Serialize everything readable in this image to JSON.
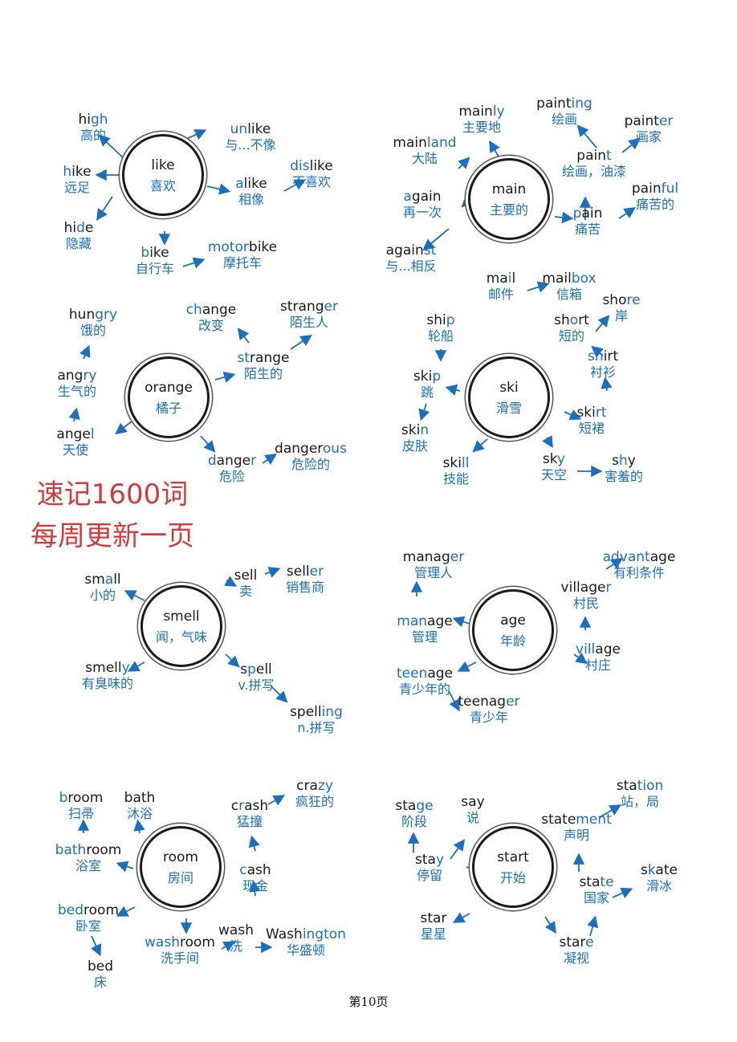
{
  "clusters": [
    {
      "id": "like",
      "center": {
        "en": "like",
        "zh": "喜欢"
      },
      "words": [
        {
          "id": "high",
          "parts": [
            [
              "hi",
              0
            ],
            [
              "gh",
              1
            ]
          ],
          "zh": "高的"
        },
        {
          "id": "hike",
          "parts": [
            [
              "h",
              1
            ],
            [
              "ike",
              0
            ]
          ],
          "zh": "远足"
        },
        {
          "id": "hide",
          "parts": [
            [
              "hi",
              0
            ],
            [
              "d",
              1
            ],
            [
              "e",
              0
            ]
          ],
          "zh": "隐藏"
        },
        {
          "id": "unlike",
          "parts": [
            [
              "un",
              1
            ],
            [
              "like",
              0
            ]
          ],
          "zh": "与...不像"
        },
        {
          "id": "alike",
          "parts": [
            [
              "a",
              1
            ],
            [
              "like",
              0
            ]
          ],
          "zh": "相像"
        },
        {
          "id": "dislike",
          "parts": [
            [
              "dis",
              1
            ],
            [
              "like",
              0
            ]
          ],
          "zh": "不喜欢"
        },
        {
          "id": "bike",
          "parts": [
            [
              "b",
              1
            ],
            [
              "ike",
              0
            ]
          ],
          "zh": "自行车"
        },
        {
          "id": "motorbike",
          "parts": [
            [
              "motor",
              1
            ],
            [
              "bike",
              0
            ]
          ],
          "zh": "摩托车"
        }
      ]
    },
    {
      "id": "main",
      "center": {
        "en": "main",
        "zh": "主要的"
      },
      "words": [
        {
          "id": "mainly",
          "parts": [
            [
              "main",
              0
            ],
            [
              "ly",
              1
            ]
          ],
          "zh": "主要地"
        },
        {
          "id": "mainland",
          "parts": [
            [
              "main",
              0
            ],
            [
              "land",
              1
            ]
          ],
          "zh": "大陆"
        },
        {
          "id": "painting",
          "parts": [
            [
              "paint",
              0
            ],
            [
              "ing",
              1
            ]
          ],
          "zh": "绘画"
        },
        {
          "id": "painter",
          "parts": [
            [
              "paint",
              0
            ],
            [
              "er",
              1
            ]
          ],
          "zh": "画家"
        },
        {
          "id": "paint",
          "parts": [
            [
              "pain",
              0
            ],
            [
              "t",
              1
            ]
          ],
          "zh": "绘画，油漆"
        },
        {
          "id": "again",
          "parts": [
            [
              "a",
              1
            ],
            [
              "gain",
              0
            ]
          ],
          "zh": "再一次"
        },
        {
          "id": "painful",
          "parts": [
            [
              "pain",
              0
            ],
            [
              "ful",
              1
            ]
          ],
          "zh": "痛苦的"
        },
        {
          "id": "pain",
          "parts": [
            [
              "p",
              1
            ],
            [
              "ain",
              0
            ]
          ],
          "zh": "痛苦"
        },
        {
          "id": "against",
          "parts": [
            [
              "again",
              0
            ],
            [
              "st",
              1
            ]
          ],
          "zh": "与...相反"
        },
        {
          "id": "mail",
          "parts": [
            [
              "ma",
              0
            ],
            [
              "i",
              1
            ],
            [
              "l",
              0
            ]
          ],
          "zh": "邮件"
        },
        {
          "id": "mailbox",
          "parts": [
            [
              "mail",
              0
            ],
            [
              "box",
              1
            ]
          ],
          "zh": "信箱"
        }
      ]
    },
    {
      "id": "orange",
      "center": {
        "en": "orange",
        "zh": "橘子"
      },
      "words": [
        {
          "id": "hungry",
          "parts": [
            [
              "hun",
              0
            ],
            [
              "gry",
              1
            ]
          ],
          "zh": "饿的"
        },
        {
          "id": "change",
          "parts": [
            [
              "ch",
              1
            ],
            [
              "ange",
              0
            ]
          ],
          "zh": "改变"
        },
        {
          "id": "stranger",
          "parts": [
            [
              "strang",
              0
            ],
            [
              "er",
              1
            ]
          ],
          "zh": "陌生人"
        },
        {
          "id": "strange",
          "parts": [
            [
              "st",
              1
            ],
            [
              "range",
              0
            ]
          ],
          "zh": "陌生的"
        },
        {
          "id": "angry",
          "parts": [
            [
              "ang",
              0
            ],
            [
              "ry",
              1
            ]
          ],
          "zh": "生气的"
        },
        {
          "id": "angel",
          "parts": [
            [
              "ange",
              0
            ],
            [
              "l",
              1
            ]
          ],
          "zh": "天使"
        },
        {
          "id": "danger",
          "parts": [
            [
              "d",
              1
            ],
            [
              "ange",
              0
            ],
            [
              "r",
              1
            ]
          ],
          "zh": "危险"
        },
        {
          "id": "dangerous",
          "parts": [
            [
              "danger",
              0
            ],
            [
              "ous",
              1
            ]
          ],
          "zh": "危险的"
        }
      ]
    },
    {
      "id": "ski",
      "center": {
        "en": "ski",
        "zh": "滑雪"
      },
      "words": [
        {
          "id": "ship",
          "parts": [
            [
              "sh",
              0
            ],
            [
              "i",
              0
            ],
            [
              "p",
              1
            ]
          ],
          "zh": "轮船"
        },
        {
          "id": "shore",
          "parts": [
            [
              "sho",
              0
            ],
            [
              "re",
              1
            ]
          ],
          "zh": "岸"
        },
        {
          "id": "short",
          "parts": [
            [
              "sh",
              0
            ],
            [
              "o",
              1
            ],
            [
              "rt",
              0
            ]
          ],
          "zh": "短的"
        },
        {
          "id": "shirt",
          "parts": [
            [
              "sh",
              1
            ],
            [
              "irt",
              0
            ]
          ],
          "zh": "衬衫"
        },
        {
          "id": "skip",
          "parts": [
            [
              "ski",
              0
            ],
            [
              "p",
              1
            ]
          ],
          "zh": "跳"
        },
        {
          "id": "skirt",
          "parts": [
            [
              "ski",
              0
            ],
            [
              "rt",
              1
            ]
          ],
          "zh": "短裙"
        },
        {
          "id": "skin",
          "parts": [
            [
              "ski",
              0
            ],
            [
              "n",
              1
            ]
          ],
          "zh": "皮肤"
        },
        {
          "id": "skill",
          "parts": [
            [
              "ski",
              0
            ],
            [
              "ll",
              1
            ]
          ],
          "zh": "技能"
        },
        {
          "id": "sky",
          "parts": [
            [
              "sk",
              0
            ],
            [
              "y",
              1
            ]
          ],
          "zh": "天空"
        },
        {
          "id": "shy",
          "parts": [
            [
              "s",
              0
            ],
            [
              "h",
              1
            ],
            [
              "y",
              0
            ]
          ],
          "zh": "害羞的"
        }
      ]
    },
    {
      "id": "smell",
      "center": {
        "en": "smell",
        "zh": "闻，气味"
      },
      "words": [
        {
          "id": "small",
          "parts": [
            [
              "sm",
              0
            ],
            [
              "a",
              1
            ],
            [
              "ll",
              0
            ]
          ],
          "zh": "小的"
        },
        {
          "id": "sell",
          "parts": [
            [
              "s",
              0
            ],
            [
              "ell",
              0
            ]
          ],
          "zh": "卖"
        },
        {
          "id": "seller",
          "parts": [
            [
              "sell",
              0
            ],
            [
              "er",
              1
            ]
          ],
          "zh": "销售商"
        },
        {
          "id": "smelly",
          "parts": [
            [
              "smell",
              0
            ],
            [
              "y",
              1
            ]
          ],
          "zh": "有臭味的"
        },
        {
          "id": "spell",
          "parts": [
            [
              "s",
              0
            ],
            [
              "p",
              1
            ],
            [
              "ell",
              0
            ]
          ],
          "zh": "v.拼写"
        },
        {
          "id": "spelling",
          "parts": [
            [
              "spell",
              0
            ],
            [
              "ing",
              1
            ]
          ],
          "zh": "n.拼写"
        }
      ]
    },
    {
      "id": "age",
      "center": {
        "en": "age",
        "zh": "年龄"
      },
      "words": [
        {
          "id": "manager",
          "parts": [
            [
              "manag",
              0
            ],
            [
              "er",
              1
            ]
          ],
          "zh": "管理人"
        },
        {
          "id": "advantage",
          "parts": [
            [
              "advant",
              1
            ],
            [
              "age",
              0
            ]
          ],
          "zh": "有利条件"
        },
        {
          "id": "villager",
          "parts": [
            [
              "village",
              0
            ],
            [
              "r",
              1
            ]
          ],
          "zh": "村民"
        },
        {
          "id": "manage",
          "parts": [
            [
              "man",
              1
            ],
            [
              "age",
              0
            ]
          ],
          "zh": "管理"
        },
        {
          "id": "village",
          "parts": [
            [
              "vill",
              1
            ],
            [
              "age",
              0
            ]
          ],
          "zh": "村庄"
        },
        {
          "id": "teenage",
          "parts": [
            [
              "teen",
              1
            ],
            [
              "age",
              0
            ]
          ],
          "zh": "青少年的"
        },
        {
          "id": "teenager",
          "parts": [
            [
              "teenag",
              0
            ],
            [
              "er",
              1
            ]
          ],
          "zh": "青少年"
        }
      ]
    },
    {
      "id": "room",
      "center": {
        "en": "room",
        "zh": "房间"
      },
      "words": [
        {
          "id": "broom",
          "parts": [
            [
              "b",
              1
            ],
            [
              "room",
              0
            ]
          ],
          "zh": "扫帚"
        },
        {
          "id": "bath",
          "parts": [
            [
              "bath",
              0
            ]
          ],
          "zh": "沐浴"
        },
        {
          "id": "crazy",
          "parts": [
            [
              "cra",
              0
            ],
            [
              "zy",
              1
            ]
          ],
          "zh": "疯狂的"
        },
        {
          "id": "crash",
          "parts": [
            [
              "c",
              0
            ],
            [
              "r",
              1
            ],
            [
              "ash",
              0
            ]
          ],
          "zh": "猛撞"
        },
        {
          "id": "bathroom",
          "parts": [
            [
              "bath",
              1
            ],
            [
              "room",
              0
            ]
          ],
          "zh": "浴室"
        },
        {
          "id": "cash",
          "parts": [
            [
              "c",
              1
            ],
            [
              "ash",
              0
            ]
          ],
          "zh": "现金"
        },
        {
          "id": "bedroom",
          "parts": [
            [
              "bed",
              1
            ],
            [
              "room",
              0
            ]
          ],
          "zh": "卧室"
        },
        {
          "id": "wash",
          "parts": [
            [
              "wash",
              0
            ]
          ],
          "zh": "洗"
        },
        {
          "id": "washroom",
          "parts": [
            [
              "wash",
              1
            ],
            [
              "room",
              0
            ]
          ],
          "zh": "洗手间"
        },
        {
          "id": "washington",
          "parts": [
            [
              "Wash",
              0
            ],
            [
              "ington",
              1
            ]
          ],
          "zh": "华盛顿"
        },
        {
          "id": "bed",
          "parts": [
            [
              "bed",
              0
            ]
          ],
          "zh": "床"
        }
      ]
    },
    {
      "id": "start",
      "center": {
        "en": "start",
        "zh": "开始"
      },
      "words": [
        {
          "id": "stage",
          "parts": [
            [
              "sta",
              0
            ],
            [
              "ge",
              1
            ]
          ],
          "zh": "阶段"
        },
        {
          "id": "say",
          "parts": [
            [
              "s",
              0
            ],
            [
              "ay",
              0
            ]
          ],
          "zh": "说"
        },
        {
          "id": "station",
          "parts": [
            [
              "sta",
              0
            ],
            [
              "tion",
              1
            ]
          ],
          "zh": "站，局"
        },
        {
          "id": "statement",
          "parts": [
            [
              "state",
              0
            ],
            [
              "ment",
              1
            ]
          ],
          "zh": "声明"
        },
        {
          "id": "stay",
          "parts": [
            [
              "sta",
              0
            ],
            [
              "y",
              1
            ]
          ],
          "zh": "停留"
        },
        {
          "id": "state",
          "parts": [
            [
              "sta",
              0
            ],
            [
              "te",
              1
            ]
          ],
          "zh": "国家"
        },
        {
          "id": "skate",
          "parts": [
            [
              "s",
              0
            ],
            [
              "k",
              1
            ],
            [
              "ate",
              0
            ]
          ],
          "zh": "滑冰"
        },
        {
          "id": "star",
          "parts": [
            [
              "sta",
              0
            ],
            [
              "r",
              0
            ]
          ],
          "zh": "星星"
        },
        {
          "id": "stare",
          "parts": [
            [
              "star",
              0
            ],
            [
              "e",
              1
            ]
          ],
          "zh": "凝视"
        }
      ]
    }
  ],
  "note": {
    "line1": "速记1600词",
    "line2": "每周更新一页"
  },
  "footer": "第10页",
  "colors": {
    "accent": "#1a6fbf",
    "text": "#1a1a1a",
    "note": "#d23b3b"
  }
}
